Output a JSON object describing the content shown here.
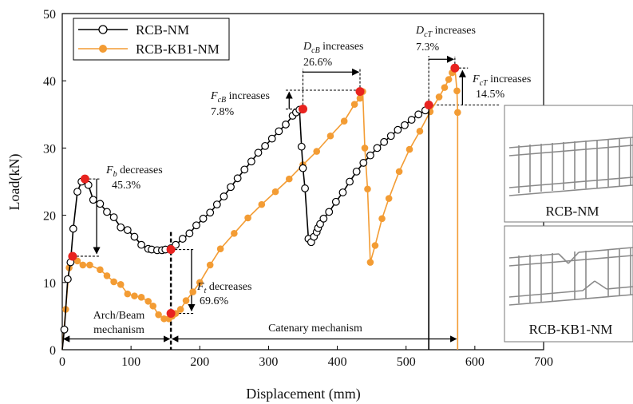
{
  "chart_data": {
    "type": "line",
    "xlabel": "Displacement (mm)",
    "ylabel": "Load(kN)",
    "xlim": [
      0,
      700
    ],
    "ylim": [
      0,
      50
    ],
    "xticks": [
      0,
      100,
      200,
      300,
      400,
      500,
      600,
      700
    ],
    "yticks": [
      0,
      10,
      20,
      30,
      40,
      50
    ],
    "colors": {
      "nm": "#000000",
      "kb": "#F39C34",
      "peak": "#E8231F"
    },
    "series": [
      {
        "name": "RCB-NM",
        "marker": "open-circle",
        "x": [
          0,
          3,
          8,
          12,
          16,
          22,
          28,
          33,
          38,
          45,
          55,
          65,
          75,
          85,
          95,
          105,
          115,
          125,
          130,
          138,
          145,
          150,
          158,
          165,
          175,
          185,
          195,
          205,
          215,
          225,
          235,
          245,
          255,
          265,
          275,
          285,
          295,
          305,
          315,
          325,
          335,
          340,
          345,
          348,
          350,
          353,
          358,
          362,
          366,
          370,
          372,
          375,
          380,
          388,
          398,
          408,
          418,
          428,
          438,
          448,
          458,
          468,
          478,
          488,
          498,
          508,
          518,
          528,
          533,
          533
        ],
        "y": [
          0,
          3,
          10.5,
          13,
          18,
          23.5,
          25,
          25.4,
          24.5,
          22.3,
          21.7,
          20.5,
          19.7,
          18.2,
          17.8,
          16.8,
          15.6,
          15.0,
          14.9,
          14.8,
          14.8,
          14.9,
          15.1,
          15.6,
          16.5,
          17.3,
          18.5,
          19.5,
          20.4,
          21.6,
          22.8,
          24.2,
          25.5,
          26.8,
          28.0,
          29.3,
          30.3,
          31.4,
          32.5,
          33.5,
          34.8,
          35.3,
          35.7,
          30.2,
          27.0,
          24.0,
          16.5,
          16.0,
          16.8,
          17.5,
          18.1,
          18.7,
          19.5,
          20.5,
          22.0,
          23.4,
          25.0,
          26.5,
          27.8,
          28.9,
          30.0,
          30.9,
          31.8,
          32.7,
          33.4,
          34.2,
          35.0,
          35.6,
          36.4,
          0
        ]
      },
      {
        "name": "RCB-KB1-NM",
        "marker": "filled-circle",
        "x": [
          0,
          5,
          10,
          15,
          22,
          30,
          40,
          55,
          65,
          75,
          85,
          95,
          105,
          115,
          125,
          132,
          140,
          148,
          155,
          160,
          165,
          172,
          180,
          190,
          200,
          215,
          230,
          250,
          270,
          290,
          310,
          330,
          350,
          370,
          390,
          410,
          425,
          433,
          437,
          440,
          444,
          448,
          455,
          465,
          475,
          490,
          505,
          520,
          535,
          548,
          556,
          562,
          567,
          571,
          574,
          575,
          575
        ],
        "y": [
          0,
          6,
          12.2,
          13.9,
          13.2,
          12.6,
          12.6,
          11.9,
          11.0,
          10.1,
          9.7,
          8.3,
          8.0,
          7.8,
          7.2,
          6.5,
          5.2,
          4.6,
          4.6,
          5.0,
          5.4,
          6.0,
          7.3,
          8.6,
          10.0,
          12.6,
          15.0,
          17.3,
          19.6,
          21.6,
          23.5,
          25.4,
          27.5,
          29.5,
          31.8,
          34.0,
          36.5,
          37.4,
          38.4,
          30.0,
          23.9,
          13.0,
          15.5,
          19.5,
          22.5,
          26.5,
          29.8,
          32.5,
          35.4,
          37.6,
          39.0,
          40.2,
          41.2,
          41.9,
          38.5,
          35.3,
          0
        ]
      }
    ],
    "peak_points": [
      {
        "x": 33,
        "y": 25.4
      },
      {
        "x": 15,
        "y": 13.9
      },
      {
        "x": 158,
        "y": 14.9
      },
      {
        "x": 158,
        "y": 5.4
      },
      {
        "x": 350,
        "y": 35.8
      },
      {
        "x": 433,
        "y": 38.4
      },
      {
        "x": 533,
        "y": 36.4
      },
      {
        "x": 571,
        "y": 41.9
      }
    ],
    "annotations": {
      "fb_line1": "decreases",
      "fb_percent": "45.3%",
      "ft_line1": "decreases",
      "ft_percent": "69.6%",
      "fcb_line1": "increases",
      "fcb_percent": "7.8%",
      "dcb_line1": "increases",
      "dcb_percent": "26.6%",
      "dct_line1": "increases",
      "dct_percent": "7.3%",
      "fct_line1": "increases",
      "fct_percent": "14.5%",
      "arch_line1": "Arch/Beam",
      "arch_line2": "mechanism",
      "catenary": "Catenary mechanism"
    },
    "legend": [
      "RCB-NM",
      "RCB-KB1-NM"
    ],
    "inset_labels": [
      "RCB-NM",
      "RCB-KB1-NM"
    ]
  }
}
